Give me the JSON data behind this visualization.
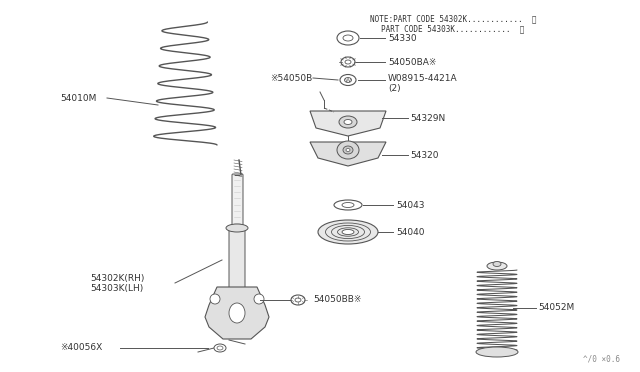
{
  "bg_color": "#ffffff",
  "line_color": "#555555",
  "text_color": "#333333",
  "note_line1": "NOTE:PART CODE 54302K............",
  "note_line2": "PART CODE 54303K............",
  "note_sym": "※",
  "bottom_text": "^/0 × 0.6",
  "fs": 6.5
}
